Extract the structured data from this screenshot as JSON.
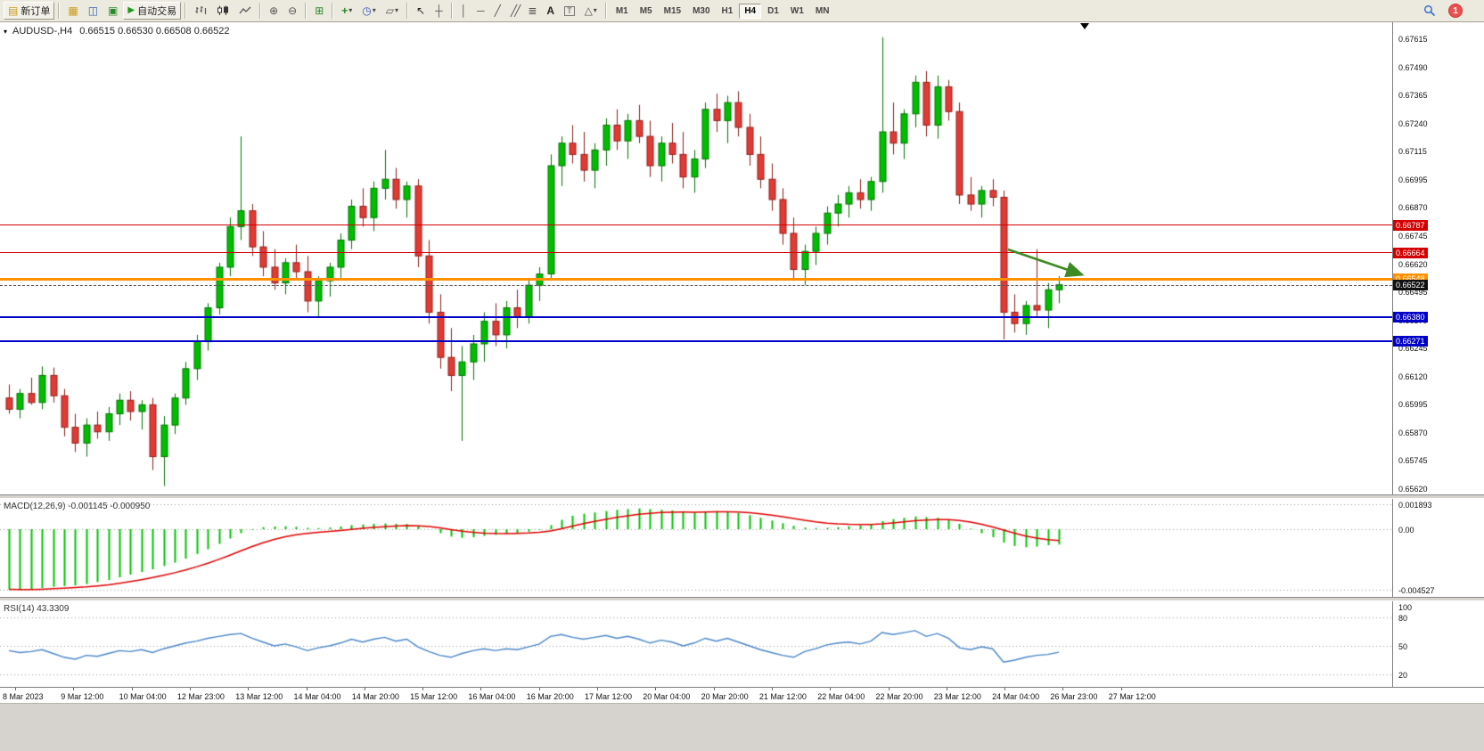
{
  "toolbar": {
    "new_order_label": "新订单",
    "autotrade_label": "自动交易",
    "timeframes": [
      "M1",
      "M5",
      "M15",
      "M30",
      "H1",
      "H4",
      "D1",
      "W1",
      "MN"
    ],
    "active_timeframe": "H4",
    "notification_count": "1",
    "glyphs": {
      "doc": "▤",
      "market_watch": "▦",
      "navigator": "◫",
      "terminal": "▣",
      "play": "▶",
      "zoom_in": "⊕",
      "zoom_out": "⊖",
      "tile": "⊞",
      "indicators": "+",
      "period": "◷",
      "template": "▱",
      "cursor": "↖",
      "crosshair": "┼",
      "vline": "│",
      "hline": "─",
      "trendline": "╱",
      "channel": "╱╱",
      "fibonacci": "≣",
      "text": "A",
      "label": "T",
      "shapes": "△",
      "dropdown": "▾"
    }
  },
  "chart_data": {
    "type": "candlestick",
    "symbol_title": "AUDUSD-,H4",
    "ohlc_text": "0.66515 0.66530 0.66508 0.66522",
    "open": "0.66515",
    "high": "0.66530",
    "low": "0.66508",
    "close": "0.66522",
    "price_range": [
      0.6562,
      0.67615
    ],
    "price_axis_labels": [
      "0.67615",
      "0.67490",
      "0.67365",
      "0.67240",
      "0.67115",
      "0.66995",
      "0.66870",
      "0.66745",
      "0.66620",
      "0.66495",
      "0.66370",
      "0.66245",
      "0.66120",
      "0.65995",
      "0.65870",
      "0.65745",
      "0.65620"
    ],
    "up_color": "#00be00",
    "up_border": "#007400",
    "down_color": "#e23b34",
    "down_border": "#8f1f1a",
    "levels": [
      {
        "name": "resistance-1",
        "label": "0.66787",
        "value": 0.66787,
        "color": "#d40000",
        "width": 1,
        "style": "solid",
        "badge": "#d40000"
      },
      {
        "name": "resistance-2",
        "label": "0.66664",
        "value": 0.66664,
        "color": "#d40000",
        "width": 1,
        "style": "solid",
        "badge": "#d40000"
      },
      {
        "name": "pivot-line",
        "label": "0.66548",
        "value": 0.66548,
        "color": "#ff9000",
        "width": 3,
        "style": "solid",
        "badge": "#ff9000"
      },
      {
        "name": "current-price",
        "label": "0.66522",
        "value": 0.66522,
        "color": "#555555",
        "width": 1,
        "style": "dashed",
        "badge": "#111111"
      },
      {
        "name": "support-1",
        "label": "0.66380",
        "value": 0.6638,
        "color": "#0000c8",
        "width": 2,
        "style": "solid",
        "badge": "#0000c8"
      },
      {
        "name": "support-2",
        "label": "0.66271",
        "value": 0.66271,
        "color": "#0000c8",
        "width": 2,
        "style": "solid",
        "badge": "#0000c8"
      }
    ],
    "candles": [
      [
        0.6602,
        0.6608,
        0.6595,
        0.6597
      ],
      [
        0.6597,
        0.6606,
        0.6593,
        0.6604
      ],
      [
        0.6604,
        0.6611,
        0.6599,
        0.66
      ],
      [
        0.66,
        0.6616,
        0.6597,
        0.6612
      ],
      [
        0.6612,
        0.66155,
        0.66,
        0.6603
      ],
      [
        0.6603,
        0.6606,
        0.6585,
        0.6589
      ],
      [
        0.6589,
        0.6595,
        0.6578,
        0.6582
      ],
      [
        0.6582,
        0.6593,
        0.6576,
        0.659
      ],
      [
        0.659,
        0.6596,
        0.6584,
        0.6587
      ],
      [
        0.6587,
        0.6598,
        0.6583,
        0.6595
      ],
      [
        0.6595,
        0.6604,
        0.659,
        0.6601
      ],
      [
        0.6601,
        0.6605,
        0.6592,
        0.6596
      ],
      [
        0.6596,
        0.6601,
        0.6588,
        0.6599
      ],
      [
        0.6599,
        0.6602,
        0.657,
        0.6576
      ],
      [
        0.6576,
        0.6594,
        0.6563,
        0.659
      ],
      [
        0.659,
        0.6604,
        0.6586,
        0.6602
      ],
      [
        0.6602,
        0.6618,
        0.6599,
        0.6615
      ],
      [
        0.6615,
        0.663,
        0.661,
        0.6627
      ],
      [
        0.6627,
        0.6644,
        0.6623,
        0.6642
      ],
      [
        0.6642,
        0.6662,
        0.6639,
        0.666
      ],
      [
        0.666,
        0.6682,
        0.6656,
        0.6678
      ],
      [
        0.6678,
        0.6718,
        0.6672,
        0.6685
      ],
      [
        0.6685,
        0.6688,
        0.6665,
        0.6669
      ],
      [
        0.6669,
        0.6676,
        0.6656,
        0.666
      ],
      [
        0.666,
        0.6668,
        0.665,
        0.6653
      ],
      [
        0.6653,
        0.6664,
        0.6648,
        0.6662
      ],
      [
        0.6662,
        0.667,
        0.6655,
        0.6658
      ],
      [
        0.6658,
        0.6665,
        0.664,
        0.6645
      ],
      [
        0.6645,
        0.6656,
        0.6638,
        0.6654
      ],
      [
        0.6654,
        0.6662,
        0.6647,
        0.666
      ],
      [
        0.666,
        0.6675,
        0.6655,
        0.6672
      ],
      [
        0.6672,
        0.669,
        0.6668,
        0.6687
      ],
      [
        0.6687,
        0.6695,
        0.6678,
        0.6682
      ],
      [
        0.6682,
        0.6698,
        0.6676,
        0.6695
      ],
      [
        0.6695,
        0.6712,
        0.669,
        0.6699
      ],
      [
        0.6699,
        0.6704,
        0.6686,
        0.669
      ],
      [
        0.669,
        0.6698,
        0.6682,
        0.6696
      ],
      [
        0.6696,
        0.6699,
        0.666,
        0.6665
      ],
      [
        0.6665,
        0.6672,
        0.6635,
        0.664
      ],
      [
        0.664,
        0.6648,
        0.6615,
        0.662
      ],
      [
        0.662,
        0.6633,
        0.6605,
        0.6612
      ],
      [
        0.6612,
        0.6625,
        0.6583,
        0.6618
      ],
      [
        0.6618,
        0.663,
        0.661,
        0.6626
      ],
      [
        0.6626,
        0.664,
        0.6618,
        0.6636
      ],
      [
        0.6636,
        0.6644,
        0.6625,
        0.663
      ],
      [
        0.663,
        0.6645,
        0.6624,
        0.6642
      ],
      [
        0.6642,
        0.665,
        0.6633,
        0.6638
      ],
      [
        0.6638,
        0.6655,
        0.6635,
        0.6652
      ],
      [
        0.6652,
        0.666,
        0.6645,
        0.6657
      ],
      [
        0.6657,
        0.671,
        0.6654,
        0.6705
      ],
      [
        0.6705,
        0.6718,
        0.6696,
        0.6715
      ],
      [
        0.6715,
        0.6723,
        0.6706,
        0.671
      ],
      [
        0.671,
        0.672,
        0.6698,
        0.6703
      ],
      [
        0.6703,
        0.6715,
        0.6695,
        0.6712
      ],
      [
        0.6712,
        0.6726,
        0.6705,
        0.6723
      ],
      [
        0.6723,
        0.673,
        0.6712,
        0.6716
      ],
      [
        0.6716,
        0.6728,
        0.6708,
        0.6725
      ],
      [
        0.6725,
        0.6732,
        0.6715,
        0.6718
      ],
      [
        0.6718,
        0.6725,
        0.67,
        0.6705
      ],
      [
        0.6705,
        0.6718,
        0.6698,
        0.6715
      ],
      [
        0.6715,
        0.6724,
        0.6706,
        0.671
      ],
      [
        0.671,
        0.672,
        0.6695,
        0.67
      ],
      [
        0.67,
        0.6712,
        0.6693,
        0.6708
      ],
      [
        0.6708,
        0.6733,
        0.6704,
        0.673
      ],
      [
        0.673,
        0.6737,
        0.672,
        0.6725
      ],
      [
        0.6725,
        0.6736,
        0.6715,
        0.6733
      ],
      [
        0.6733,
        0.6738,
        0.6718,
        0.6722
      ],
      [
        0.6722,
        0.6728,
        0.6705,
        0.671
      ],
      [
        0.671,
        0.6718,
        0.6695,
        0.6699
      ],
      [
        0.6699,
        0.6706,
        0.6685,
        0.669
      ],
      [
        0.669,
        0.6695,
        0.667,
        0.6675
      ],
      [
        0.6675,
        0.6682,
        0.6654,
        0.6659
      ],
      [
        0.6659,
        0.667,
        0.6652,
        0.6667
      ],
      [
        0.6667,
        0.6678,
        0.6661,
        0.6675
      ],
      [
        0.6675,
        0.6687,
        0.667,
        0.6684
      ],
      [
        0.6684,
        0.6692,
        0.6678,
        0.6688
      ],
      [
        0.6688,
        0.6696,
        0.6682,
        0.6693
      ],
      [
        0.6693,
        0.6699,
        0.6686,
        0.669
      ],
      [
        0.669,
        0.67,
        0.6685,
        0.6698
      ],
      [
        0.6698,
        0.6762,
        0.6693,
        0.672
      ],
      [
        0.672,
        0.6733,
        0.671,
        0.6715
      ],
      [
        0.6715,
        0.673,
        0.6708,
        0.6728
      ],
      [
        0.6728,
        0.6745,
        0.6722,
        0.6742
      ],
      [
        0.6742,
        0.6747,
        0.6718,
        0.6723
      ],
      [
        0.6723,
        0.6745,
        0.6717,
        0.674
      ],
      [
        0.674,
        0.6743,
        0.6725,
        0.6729
      ],
      [
        0.6729,
        0.6733,
        0.6688,
        0.6692
      ],
      [
        0.6692,
        0.67,
        0.6685,
        0.6688
      ],
      [
        0.6688,
        0.6696,
        0.6682,
        0.6694
      ],
      [
        0.6694,
        0.6699,
        0.6687,
        0.6691
      ],
      [
        0.6691,
        0.6694,
        0.6628,
        0.664
      ],
      [
        0.664,
        0.6648,
        0.6631,
        0.6635
      ],
      [
        0.6635,
        0.6645,
        0.663,
        0.6643
      ],
      [
        0.6643,
        0.6668,
        0.6638,
        0.6641
      ],
      [
        0.6641,
        0.6653,
        0.6633,
        0.665
      ],
      [
        0.665,
        0.6656,
        0.6644,
        0.66522
      ]
    ],
    "time_labels": [
      "8 Mar 2023",
      "9 Mar 12:00",
      "10 Mar 04:00",
      "12 Mar 23:00",
      "13 Mar 12:00",
      "14 Mar 04:00",
      "14 Mar 20:00",
      "15 Mar 12:00",
      "16 Mar 04:00",
      "16 Mar 20:00",
      "17 Mar 12:00",
      "20 Mar 04:00",
      "20 Mar 20:00",
      "21 Mar 12:00",
      "22 Mar 04:00",
      "22 Mar 20:00",
      "23 Mar 12:00",
      "24 Mar 04:00",
      "26 Mar 23:00",
      "27 Mar 12:00"
    ],
    "macd": {
      "label": "MACD(12,26,9)",
      "value_text": "-0.001145 -0.000950",
      "histogram_color": "#00c400",
      "signal_color": "#e00000",
      "axis": [
        {
          "label": "0.001893",
          "value": 0.001893
        },
        {
          "label": "0.00",
          "value": 0
        },
        {
          "label": "-0.004527",
          "value": -0.004527
        }
      ],
      "histogram": [
        -0.0045,
        -0.00455,
        -0.0045,
        -0.0044,
        -0.0043,
        -0.00425,
        -0.0042,
        -0.0041,
        -0.00395,
        -0.0038,
        -0.0036,
        -0.0034,
        -0.0032,
        -0.003,
        -0.00275,
        -0.0025,
        -0.0022,
        -0.00185,
        -0.0015,
        -0.0011,
        -0.0007,
        -0.0003,
        -5e-05,
        0.00015,
        0.0002,
        0.00022,
        0.00018,
        0.0001,
        8e-05,
        0.00012,
        0.0002,
        0.0003,
        0.00035,
        0.0004,
        0.00042,
        0.0004,
        0.00038,
        0.00025,
        0.0,
        -0.0003,
        -0.00055,
        -0.00065,
        -0.0006,
        -0.0005,
        -0.00042,
        -0.00035,
        -0.00028,
        -0.00018,
        -5e-05,
        0.0003,
        0.0007,
        0.001,
        0.00115,
        0.00125,
        0.00135,
        0.00145,
        0.0015,
        0.00155,
        0.0015,
        0.00145,
        0.0014,
        0.0013,
        0.00125,
        0.0013,
        0.00135,
        0.0013,
        0.0012,
        0.00105,
        0.00085,
        0.00065,
        0.00045,
        0.00025,
        0.00012,
        8e-05,
        0.0001,
        0.00015,
        0.00022,
        0.00028,
        0.00035,
        0.0006,
        0.00075,
        0.00085,
        0.00095,
        0.0009,
        0.00085,
        0.0007,
        0.0004,
        5e-05,
        -0.0003,
        -0.0006,
        -0.001,
        -0.00125,
        -0.00135,
        -0.0013,
        -0.0012,
        -0.001145
      ]
    },
    "rsi": {
      "label": "RSI(14)",
      "value_text": "43.3309",
      "line_color": "#4a86c8",
      "axis_labels": [
        "100",
        "80",
        "50",
        "20"
      ],
      "levels": [
        80,
        50,
        20
      ],
      "values": [
        45,
        43,
        44,
        46,
        42,
        38,
        36,
        40,
        39,
        42,
        45,
        44,
        46,
        43,
        47,
        50,
        53,
        55,
        58,
        60,
        62,
        63,
        58,
        54,
        50,
        52,
        49,
        45,
        48,
        50,
        53,
        57,
        54,
        57,
        59,
        55,
        57,
        49,
        44,
        40,
        38,
        42,
        45,
        47,
        45,
        47,
        46,
        49,
        52,
        60,
        62,
        59,
        57,
        59,
        61,
        58,
        60,
        57,
        53,
        56,
        54,
        50,
        53,
        58,
        55,
        58,
        54,
        50,
        46,
        43,
        40,
        38,
        44,
        47,
        51,
        53,
        54,
        52,
        55,
        64,
        62,
        64,
        66,
        60,
        63,
        58,
        48,
        46,
        49,
        47,
        33,
        35,
        38,
        40,
        41,
        43.33
      ]
    },
    "annotation": {
      "type": "arrow",
      "color": "#3d8b22"
    }
  }
}
